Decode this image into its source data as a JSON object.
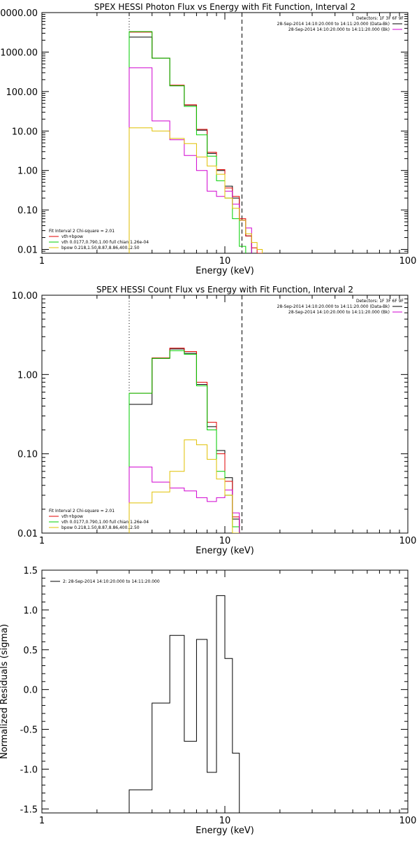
{
  "colors": {
    "data": "#000000",
    "total": "#e00000",
    "vth": "#00d000",
    "bpow": "#d000d0",
    "bpow_ct": "#e0c000"
  },
  "chart_data": [
    {
      "type": "line",
      "title": "SPEX HESSI Photon Flux vs Energy with Fit Function, Interval 2",
      "xlabel": "Energy (keV)",
      "ylabel": "",
      "xscale": "log",
      "yscale": "log",
      "xlim": [
        1,
        100
      ],
      "ylim": [
        0.008,
        10000
      ],
      "xticks": [
        1,
        10,
        100
      ],
      "xtick_labels": [
        "1",
        "10",
        "100"
      ],
      "yticks": [
        0.01,
        0.1,
        1,
        10,
        100,
        1000,
        10000
      ],
      "ytick_labels": [
        "0.01",
        "0.10",
        "1.00",
        "10.00",
        "100.00",
        "1000.00",
        "10000.00"
      ],
      "vlines_dotted": [
        3
      ],
      "vlines_dashed": [
        12.4
      ],
      "edges": [
        3,
        4,
        5,
        6,
        7,
        8,
        9,
        10,
        11,
        12,
        13,
        14,
        15,
        16
      ],
      "legend_top": {
        "header": "Detectors: 1F 3F 6F 9F",
        "lines": [
          {
            "color_key": "data",
            "text": "28-Sep-2014 14:10:20.000 to 14:11:20.000 (Data-Bk)"
          },
          {
            "color_key": "bpow",
            "text": "28-Sep-2014 14:10:20.000 to 14:11:20.000 (Bk)"
          }
        ]
      },
      "legend_bottom": {
        "header": "Fit Interval 2   Chi-square = 2.01",
        "lines": [
          {
            "color_key": "total",
            "text": "vth+bpow"
          },
          {
            "color_key": "vth",
            "text": "vth 0.0177,0.790,1.00  full chian 1.26e-04"
          },
          {
            "color_key": "bpow_ct",
            "text": "bpow 0.218,1.50,8.87,8.86,400.,2.50"
          }
        ]
      },
      "series": [
        {
          "color_key": "data",
          "values": [
            2400,
            700,
            140,
            45,
            10.5,
            2.7,
            1.0,
            0.4,
            0.2,
            0.055,
            0.022
          ]
        },
        {
          "color_key": "total",
          "values": [
            3200,
            700,
            145,
            46,
            11,
            2.9,
            1.05,
            0.36,
            0.22,
            0.06,
            0.022,
            0.011,
            0.008
          ]
        },
        {
          "color_key": "vth",
          "values": [
            3300,
            700,
            140,
            42,
            8.0,
            2.3,
            0.55,
            0.2,
            0.06,
            0.012,
            0.003
          ]
        },
        {
          "color_key": "bpow",
          "values": [
            400,
            18,
            6.0,
            2.4,
            1.0,
            0.3,
            0.22,
            0.3,
            0.14,
            0.055,
            0.035
          ]
        },
        {
          "color_key": "bpow_ct",
          "values": [
            12,
            10,
            6.5,
            4.8,
            2.2,
            1.3,
            0.8,
            0.2,
            0.11,
            0.055,
            0.025,
            0.015,
            0.01
          ]
        }
      ]
    },
    {
      "type": "line",
      "title": "SPEX HESSI Count Flux vs Energy with Fit Function, Interval 2",
      "xlabel": "Energy (keV)",
      "ylabel": "",
      "xscale": "log",
      "yscale": "log",
      "xlim": [
        1,
        100
      ],
      "ylim": [
        0.01,
        10
      ],
      "xticks": [
        1,
        10,
        100
      ],
      "xtick_labels": [
        "1",
        "10",
        "100"
      ],
      "yticks": [
        0.01,
        0.1,
        1,
        10
      ],
      "ytick_labels": [
        "0.01",
        "0.10",
        "1.00",
        "10.00"
      ],
      "vlines_dotted": [
        3
      ],
      "vlines_dashed": [
        12.4
      ],
      "edges": [
        3,
        4,
        5,
        6,
        7,
        8,
        9,
        10,
        11,
        12
      ],
      "legend_top": {
        "header": "Detectors: 1F 3F 6F 9F",
        "lines": [
          {
            "color_key": "data",
            "text": "28-Sep-2014 14:10:20.000 to 14:11:20.000 (Data-Bk)"
          },
          {
            "color_key": "bpow",
            "text": "28-Sep-2014 14:10:20.000 to 14:11:20.000 (Bk)"
          }
        ]
      },
      "legend_bottom": {
        "header": "Fit Interval 2   Chi-square = 2.01",
        "lines": [
          {
            "color_key": "total",
            "text": "vth+bpow"
          },
          {
            "color_key": "vth",
            "text": "vth 0.0177,0.790,1.00  full chian 1.26e-04"
          },
          {
            "color_key": "bpow_ct",
            "text": "bpow 0.218,1.50,8.87,8.86,400.,2.50"
          }
        ]
      },
      "series": [
        {
          "color_key": "data",
          "values": [
            0.42,
            1.6,
            2.1,
            1.85,
            0.75,
            0.22,
            0.11,
            0.05,
            0.015
          ]
        },
        {
          "color_key": "total",
          "values": [
            0.58,
            1.62,
            2.15,
            1.95,
            0.8,
            0.25,
            0.1,
            0.045,
            0.016
          ]
        },
        {
          "color_key": "vth",
          "values": [
            0.58,
            1.6,
            2.0,
            1.8,
            0.72,
            0.2,
            0.06,
            0.03,
            0.012
          ]
        },
        {
          "color_key": "bpow",
          "values": [
            0.068,
            0.044,
            0.037,
            0.034,
            0.028,
            0.025,
            0.028,
            0.035,
            0.018
          ]
        },
        {
          "color_key": "bpow_ct",
          "values": [
            0.024,
            0.033,
            0.06,
            0.15,
            0.13,
            0.085,
            0.048,
            0.03,
            0.01
          ]
        }
      ]
    },
    {
      "type": "line",
      "title": "",
      "xlabel": "Energy (keV)",
      "ylabel": "Normalized Residuals (sigma)",
      "xscale": "log",
      "yscale": "linear",
      "xlim": [
        1,
        100
      ],
      "ylim": [
        -1.55,
        1.5
      ],
      "xticks": [
        1,
        10,
        100
      ],
      "xtick_labels": [
        "1",
        "10",
        "100"
      ],
      "yticks": [
        -1.5,
        -1.0,
        -0.5,
        0.0,
        0.5,
        1.0,
        1.5
      ],
      "ytick_labels": [
        "-1.5",
        "-1.0",
        "-0.5",
        "0.0",
        "0.5",
        "1.0",
        "1.5"
      ],
      "edges": [
        3,
        4,
        5,
        6,
        7,
        8,
        9,
        10,
        11,
        12
      ],
      "legend_top": {
        "header": "",
        "lines": [
          {
            "color_key": "data",
            "text": "2: 28-Sep-2014 14:10:20.000 to 14:11:20.000"
          }
        ]
      },
      "series": [
        {
          "color_key": "data",
          "values": [
            -1.26,
            -0.17,
            0.68,
            -0.65,
            0.63,
            -1.04,
            1.18,
            0.39,
            -0.8
          ]
        }
      ]
    }
  ]
}
